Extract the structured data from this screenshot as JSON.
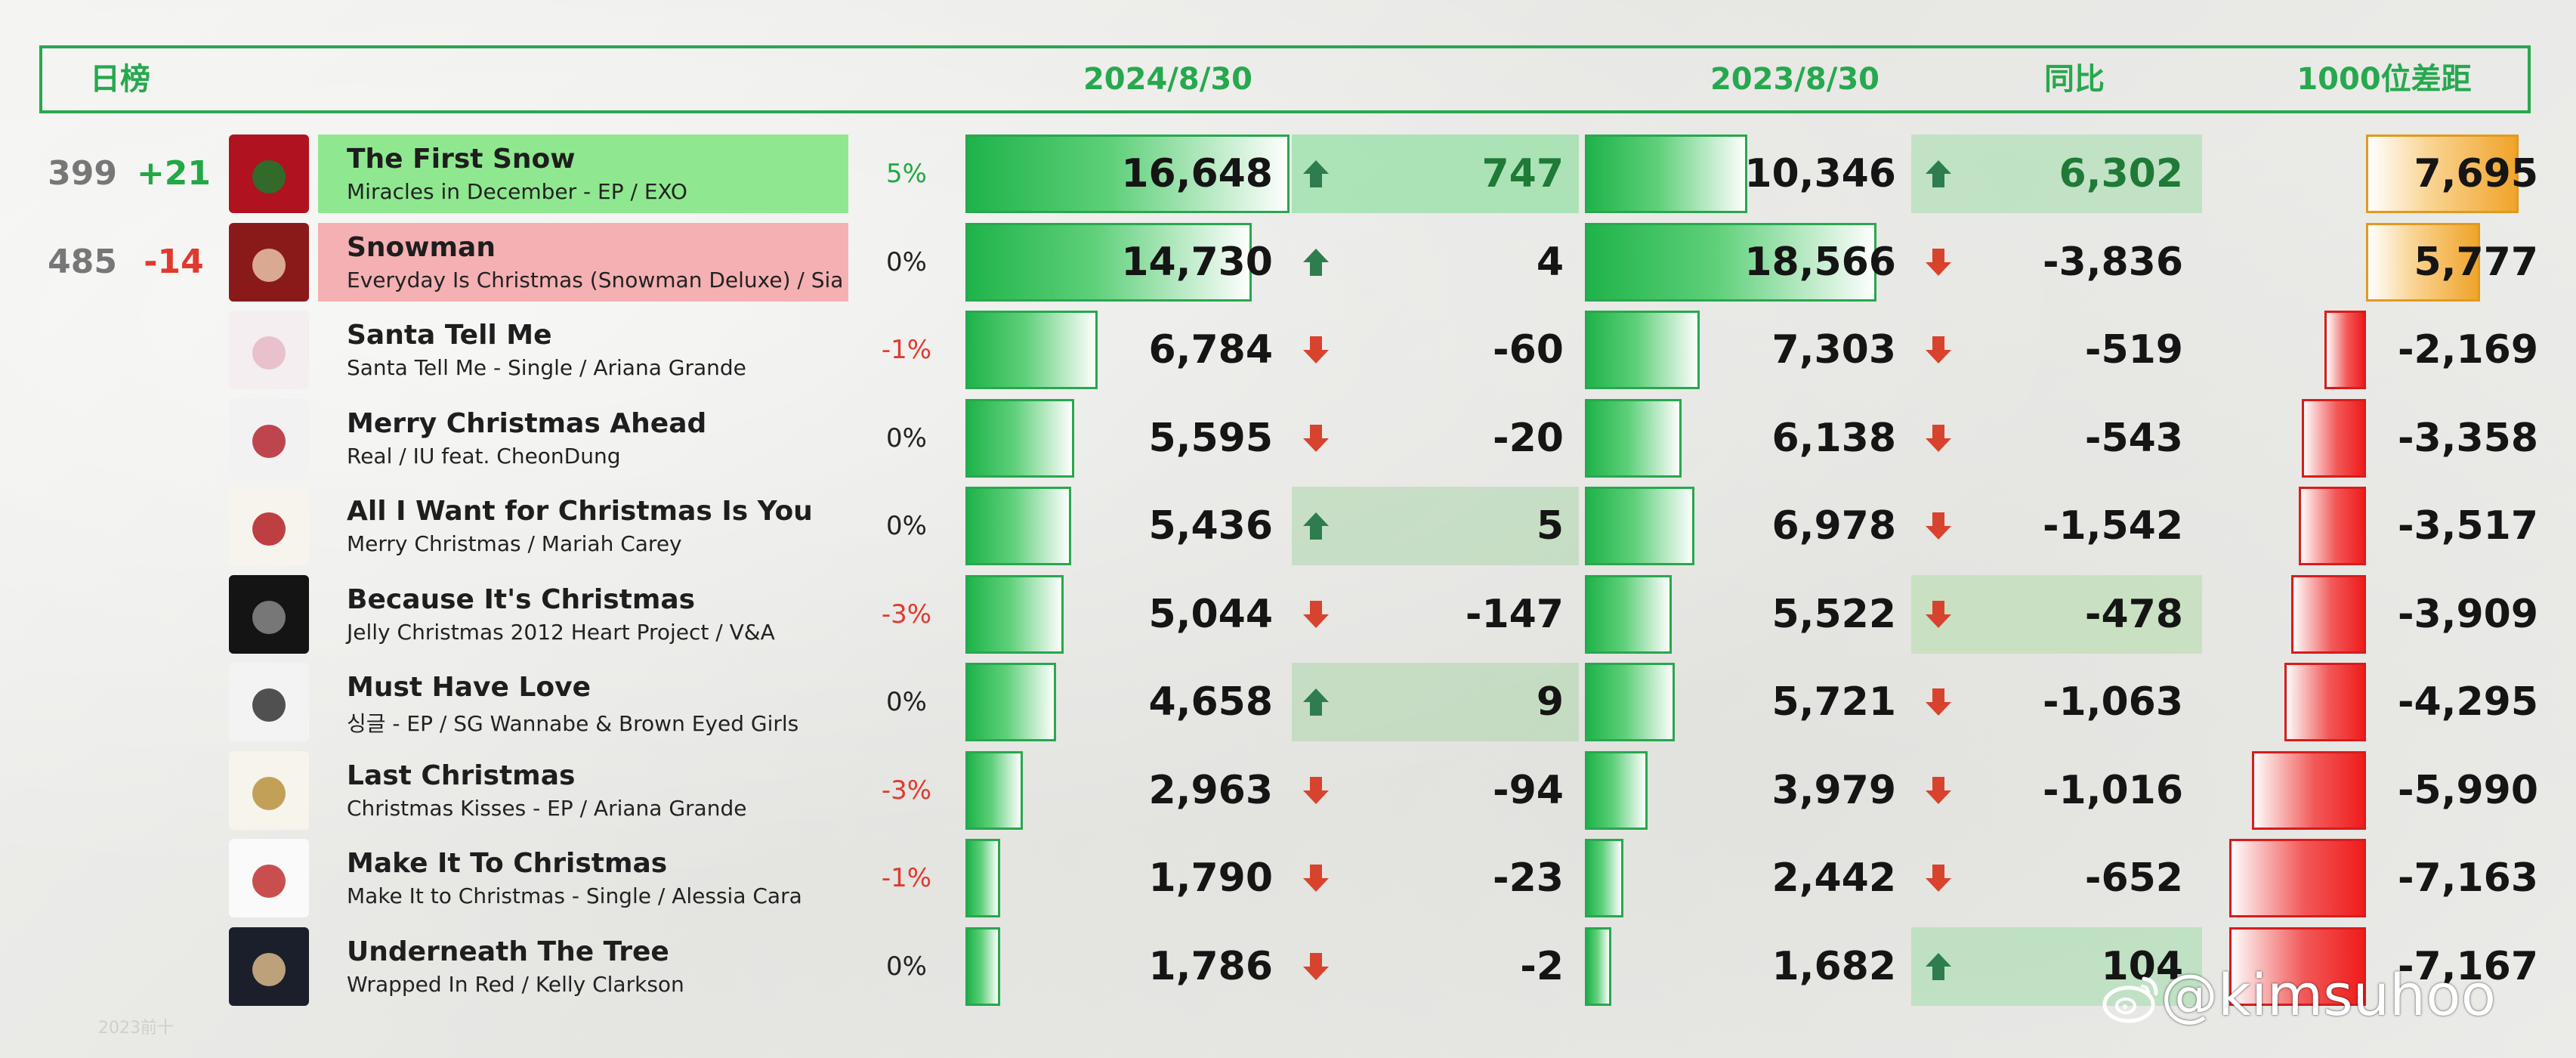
{
  "header": {
    "daily": "日榜",
    "date_current": "2024/8/30",
    "date_prev": "2023/8/30",
    "yoy": "同比",
    "gap": "1000位差距"
  },
  "colors": {
    "accent_green": "#27a84e",
    "up_green": "#22a845",
    "down_red": "#e03a2f",
    "gap_neg_red": "#ef1c1c",
    "gap_pos_orange": "#f0a42a"
  },
  "chart_data": {
    "type": "table",
    "columns": [
      "rank",
      "rank_change",
      "song",
      "album_artist",
      "pct_change",
      "value_2024_8_30",
      "daily_change",
      "value_2023_8_30",
      "yoy_change",
      "gap_to_1000"
    ],
    "rows": [
      {
        "rank": "399",
        "rank_change": "+21",
        "song": "The First Snow",
        "album": "Miracles in December - EP / EXO",
        "pct": "5%",
        "cur": 16648,
        "cur_label": "16,648",
        "daily": "747",
        "daily_dir": "up",
        "prev": 10346,
        "prev_label": "10,346",
        "yoy": "6,302",
        "yoy_dir": "up",
        "gap": 7695,
        "gap_label": "7,695",
        "highlight": "green"
      },
      {
        "rank": "485",
        "rank_change": "-14",
        "song": "Snowman",
        "album": "Everyday Is Christmas (Snowman Deluxe) / Sia",
        "pct": "0%",
        "cur": 14730,
        "cur_label": "14,730",
        "daily": "4",
        "daily_dir": "up",
        "prev": 18566,
        "prev_label": "18,566",
        "yoy": "-3,836",
        "yoy_dir": "down",
        "gap": 5777,
        "gap_label": "5,777",
        "highlight": "red"
      },
      {
        "rank": "",
        "rank_change": "",
        "song": "Santa Tell Me",
        "album": "Santa Tell Me - Single / Ariana Grande",
        "pct": "-1%",
        "cur": 6784,
        "cur_label": "6,784",
        "daily": "-60",
        "daily_dir": "down",
        "prev": 7303,
        "prev_label": "7,303",
        "yoy": "-519",
        "yoy_dir": "down",
        "gap": -2169,
        "gap_label": "-2,169",
        "highlight": ""
      },
      {
        "rank": "",
        "rank_change": "",
        "song": "Merry Christmas Ahead",
        "album": "Real / IU feat. CheonDung",
        "pct": "0%",
        "cur": 5595,
        "cur_label": "5,595",
        "daily": "-20",
        "daily_dir": "down",
        "prev": 6138,
        "prev_label": "6,138",
        "yoy": "-543",
        "yoy_dir": "down",
        "gap": -3358,
        "gap_label": "-3,358",
        "highlight": ""
      },
      {
        "rank": "",
        "rank_change": "",
        "song": "All I Want for Christmas Is You",
        "album": "Merry Christmas / Mariah Carey",
        "pct": "0%",
        "cur": 5436,
        "cur_label": "5,436",
        "daily": "5",
        "daily_dir": "up",
        "prev": 6978,
        "prev_label": "6,978",
        "yoy": "-1,542",
        "yoy_dir": "down",
        "gap": -3517,
        "gap_label": "-3,517",
        "highlight": ""
      },
      {
        "rank": "",
        "rank_change": "",
        "song": "Because It's Christmas",
        "album": "Jelly Christmas 2012 Heart Project  / V&A",
        "pct": "-3%",
        "cur": 5044,
        "cur_label": "5,044",
        "daily": "-147",
        "daily_dir": "down",
        "prev": 5522,
        "prev_label": "5,522",
        "yoy": "-478",
        "yoy_dir": "down",
        "gap": -3909,
        "gap_label": "-3,909",
        "highlight": ""
      },
      {
        "rank": "",
        "rank_change": "",
        "song": "Must Have Love",
        "album": "싱글 - EP / SG Wannabe & Brown Eyed Girls",
        "pct": "0%",
        "cur": 4658,
        "cur_label": "4,658",
        "daily": "9",
        "daily_dir": "up",
        "prev": 5721,
        "prev_label": "5,721",
        "yoy": "-1,063",
        "yoy_dir": "down",
        "gap": -4295,
        "gap_label": "-4,295",
        "highlight": ""
      },
      {
        "rank": "",
        "rank_change": "",
        "song": "Last Christmas",
        "album": "Christmas Kisses - EP / Ariana Grande",
        "pct": "-3%",
        "cur": 2963,
        "cur_label": "2,963",
        "daily": "-94",
        "daily_dir": "down",
        "prev": 3979,
        "prev_label": "3,979",
        "yoy": "-1,016",
        "yoy_dir": "down",
        "gap": -5990,
        "gap_label": "-5,990",
        "highlight": ""
      },
      {
        "rank": "",
        "rank_change": "",
        "song": "Make It To Christmas",
        "album": "Make It to Christmas - Single / Alessia Cara",
        "pct": "-1%",
        "cur": 1790,
        "cur_label": "1,790",
        "daily": "-23",
        "daily_dir": "down",
        "prev": 2442,
        "prev_label": "2,442",
        "yoy": "-652",
        "yoy_dir": "down",
        "gap": -7163,
        "gap_label": "-7,163",
        "highlight": ""
      },
      {
        "rank": "",
        "rank_change": "",
        "song": "Underneath The Tree",
        "album": "Wrapped In Red / Kelly Clarkson",
        "pct": "0%",
        "cur": 1786,
        "cur_label": "1,786",
        "daily": "-2",
        "daily_dir": "down",
        "prev": 1682,
        "prev_label": "1,682",
        "yoy": "104",
        "yoy_dir": "up",
        "gap": -7167,
        "gap_label": "-7,167",
        "highlight": ""
      }
    ]
  },
  "footer": {
    "small_mark": "2023前十",
    "watermark": "@kimsuhoo"
  }
}
